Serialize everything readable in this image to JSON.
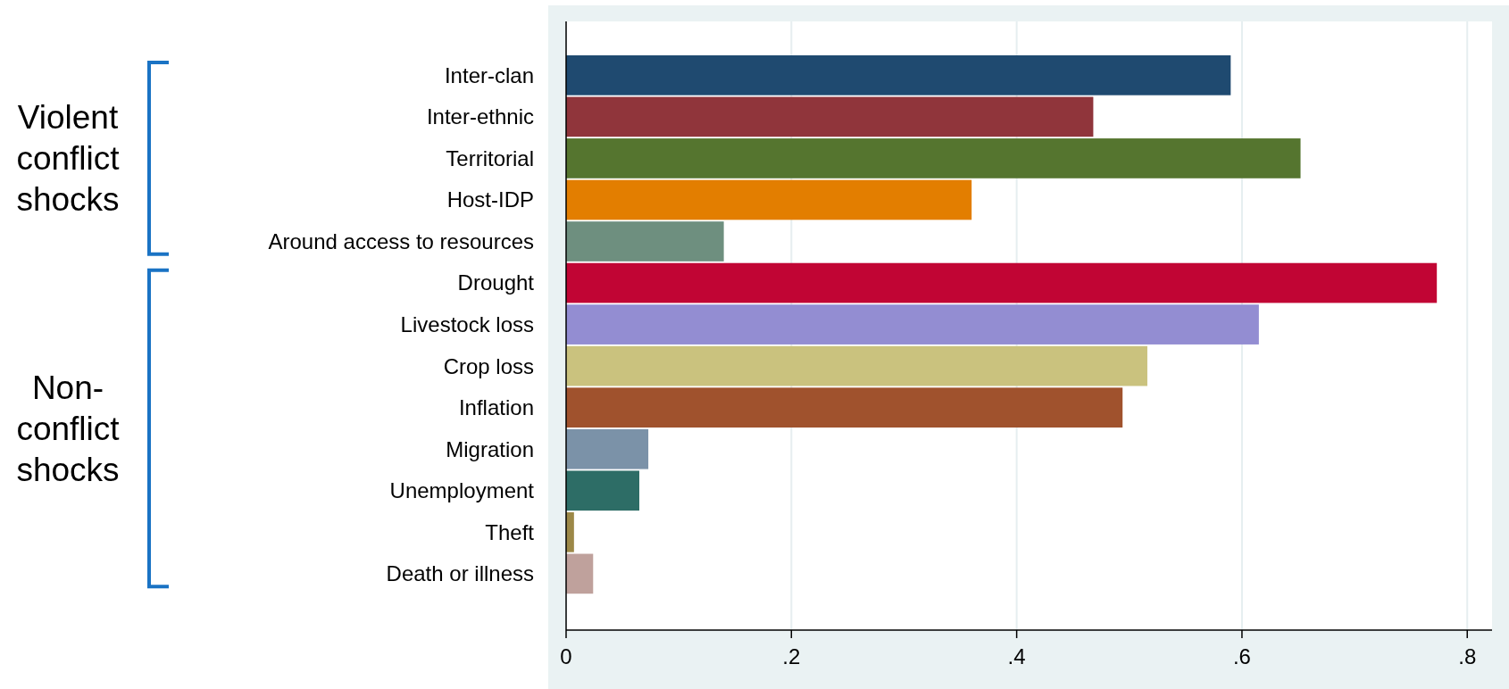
{
  "chart_data": {
    "type": "bar",
    "orientation": "horizontal",
    "categories": [
      "Inter-clan",
      "Inter-ethnic",
      "Territorial",
      "Host-IDP",
      "Around access to resources",
      "Drought",
      "Livestock loss",
      "Crop loss",
      "Inflation",
      "Migration",
      "Unemployment",
      "Theft",
      "Death or illness"
    ],
    "values": [
      0.59,
      0.468,
      0.652,
      0.36,
      0.14,
      0.773,
      0.615,
      0.516,
      0.494,
      0.073,
      0.065,
      0.007,
      0.024
    ],
    "colors": [
      "#1f4a70",
      "#90353b",
      "#55752f",
      "#e37e00",
      "#6e8f7f",
      "#c10534",
      "#938dd2",
      "#cac27e",
      "#a0522d",
      "#7b92a8",
      "#2d6d66",
      "#9c8847",
      "#bfa19c"
    ],
    "xlim": [
      0,
      0.822
    ],
    "xticks": [
      {
        "value": 0,
        "label": "0"
      },
      {
        "value": 0.2,
        "label": ".2"
      },
      {
        "value": 0.4,
        "label": ".4"
      },
      {
        "value": 0.6,
        "label": ".6"
      },
      {
        "value": 0.8,
        "label": ".8"
      }
    ],
    "grid": "x",
    "annotations": [
      "Violent\nconflict\nshocks",
      "Non-\nconflict\nshocks"
    ]
  }
}
